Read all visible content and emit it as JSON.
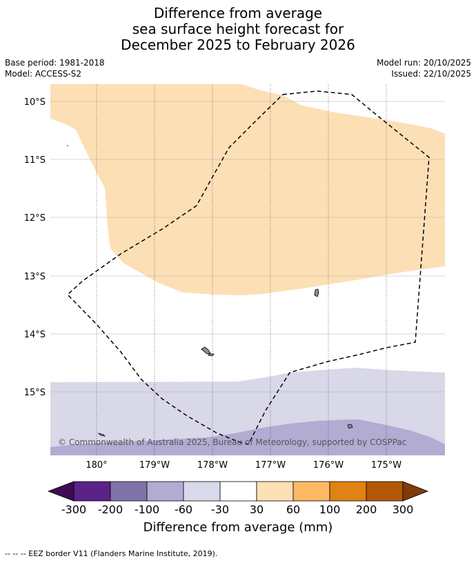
{
  "title": {
    "line1": "Difference from average",
    "line2": "sea surface height forecast for",
    "line3": "December 2025 to February 2026"
  },
  "meta": {
    "base_period": "Base period: 1981-2018",
    "model": "Model: ACCESS-S2",
    "model_run": "Model run: 20/10/2025",
    "issued": "Issued: 22/10/2025"
  },
  "map": {
    "lat_labels": [
      "10°S",
      "11°S",
      "12°S",
      "13°S",
      "14°S",
      "15°S"
    ],
    "lon_labels": [
      "180°",
      "179°W",
      "178°W",
      "177°W",
      "176°W",
      "175°W"
    ],
    "copyright": "© Commonwealth of Australia 2025, Bureau of Meteorology, supported by COSPPac",
    "region_colors": {
      "positive_30_60": "#fddfb5",
      "neutral": "#ffffff",
      "negative_30_60": "#d8d8e8",
      "negative_60_100": "#b2abd2",
      "land": "#8a8a95"
    }
  },
  "colorbar": {
    "labels": [
      "-300",
      "-200",
      "-100",
      "-60",
      "-30",
      "30",
      "60",
      "100",
      "200",
      "300"
    ],
    "colors": [
      "#3f0b54",
      "#5b2388",
      "#8073ac",
      "#b2abd2",
      "#d8daeb",
      "#ffffff",
      "#fee0b6",
      "#fdb863",
      "#e08214",
      "#b35806",
      "#7f3b08"
    ],
    "title": "Difference from average (mm)"
  },
  "footer": {
    "eez_text": "--  --  -- EEZ border V11 (Flanders Marine Institute, 2019)."
  }
}
